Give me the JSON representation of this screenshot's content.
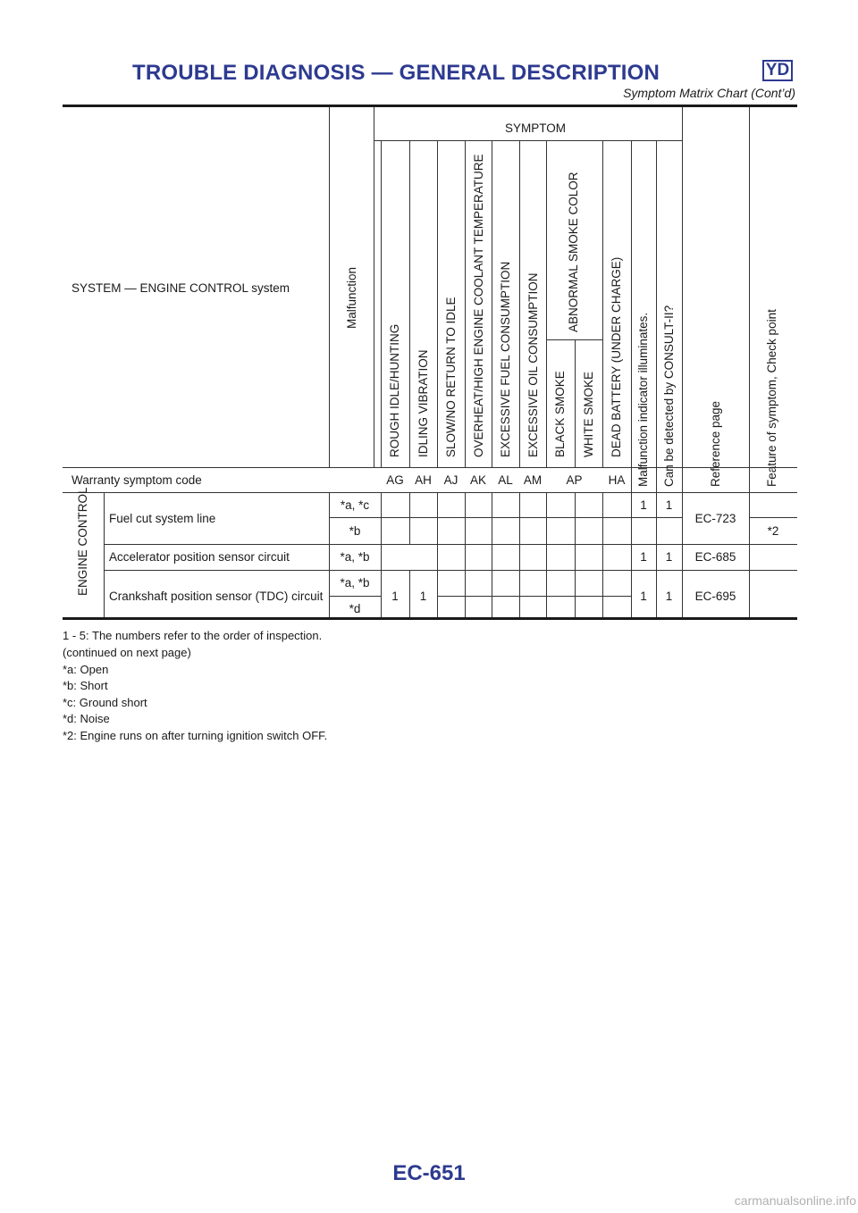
{
  "header": {
    "title": "TROUBLE DIAGNOSIS — GENERAL DESCRIPTION",
    "badge": "YD",
    "subtitle": "Symptom Matrix Chart (Cont’d)"
  },
  "table": {
    "system_label": "SYSTEM — ENGINE CONTROL system",
    "malfunction_label": "Malfunction",
    "symptom_label": "SYMPTOM",
    "symptoms": [
      "ROUGH IDLE/HUNTING",
      "IDLING VIBRATION",
      "SLOW/NO RETURN TO IDLE",
      "OVERHEAT/HIGH ENGINE COOLANT TEMPERATURE",
      "EXCESSIVE FUEL CONSUMPTION",
      "EXCESSIVE OIL CONSUMPTION",
      "ABNORMAL SMOKE COLOR",
      "BLACK SMOKE",
      "WHITE SMOKE",
      "DEAD BATTERY (UNDER CHARGE)",
      "Malfunction indicator illuminates.",
      "Can be detected by CONSULT-II?",
      "Reference page",
      "Feature of symptom, Check point"
    ],
    "warranty_label": "Warranty symptom code",
    "warranty_codes": [
      "AG",
      "AH",
      "AJ",
      "AK",
      "AL",
      "AM",
      "AP",
      "HA"
    ],
    "group_label": "ENGINE CONTROL",
    "rows": [
      {
        "system": "Fuel cut system line",
        "sub": [
          {
            "malfunction": "*a, *c",
            "mil": "1",
            "consult": "1"
          },
          {
            "malfunction": "*b",
            "feature": "*2"
          }
        ],
        "reference": "EC-723"
      },
      {
        "system": "Accelerator position sensor circuit",
        "malfunction": "*a, *b",
        "mil": "1",
        "consult": "1",
        "reference": "EC-685"
      },
      {
        "system": "Crankshaft position sensor (TDC) circuit",
        "sub": [
          {
            "malfunction": "*a, *b"
          },
          {
            "malfunction": "*d"
          }
        ],
        "rough_idle": "1",
        "idling_vibration": "1",
        "mil": "1",
        "consult": "1",
        "reference": "EC-695"
      }
    ]
  },
  "footnotes": [
    "1 - 5: The numbers refer to the order of inspection.",
    "(continued on next page)",
    "*a: Open",
    "*b: Short",
    "*c: Ground short",
    "*d: Noise",
    "*2: Engine runs on after turning ignition switch OFF."
  ],
  "page_number": "EC-651",
  "watermark": "carmanualsonline.info"
}
